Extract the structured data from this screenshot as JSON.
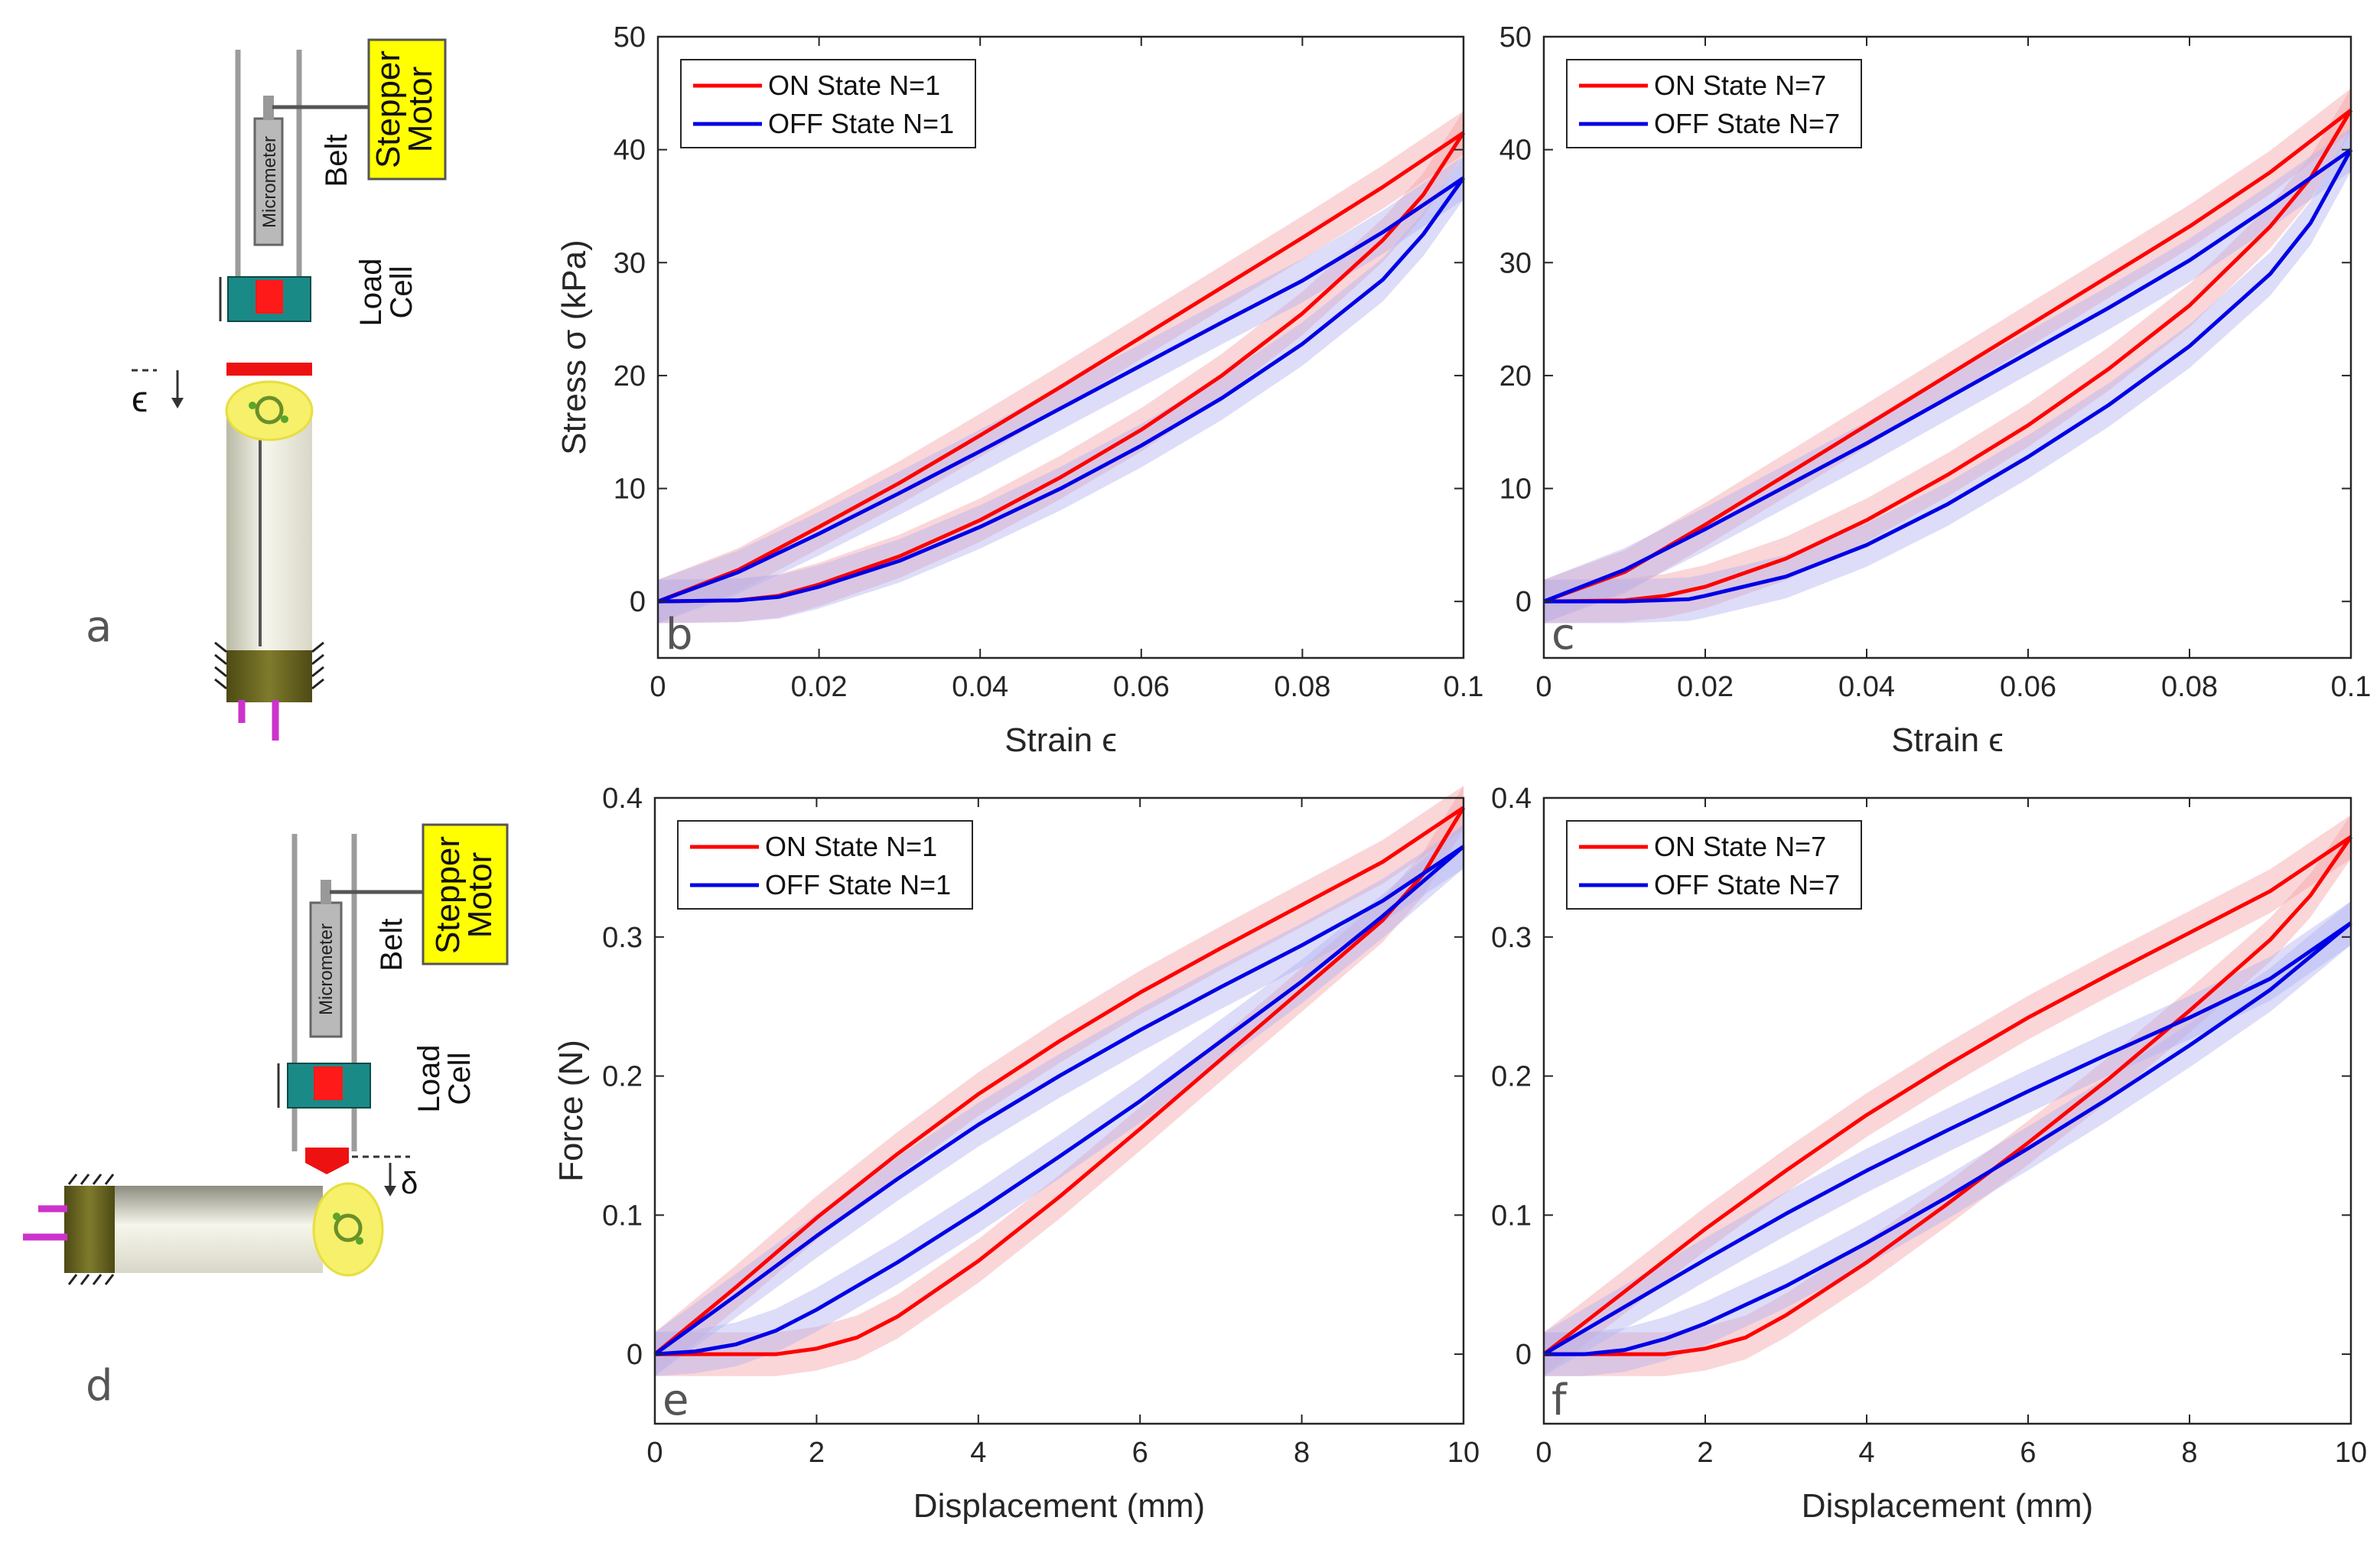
{
  "schematics": [
    {
      "letter": "a",
      "motor_line1": "Stepper",
      "motor_line2": "Motor",
      "belt": "Belt",
      "micrometer": "Micrometer",
      "load_line1": "Load",
      "load_line2": "Cell",
      "symbol": "ϵ"
    },
    {
      "letter": "d",
      "motor_line1": "Stepper",
      "motor_line2": "Motor",
      "belt": "Belt",
      "micrometer": "Micrometer",
      "load_line1": "Load",
      "load_line2": "Cell",
      "symbol": "δ"
    }
  ],
  "colors": {
    "on": "#ff0000",
    "off": "#0000e6",
    "on_band": "#f4a3a8",
    "off_band": "#b3b3f2",
    "motor_box": "#ffff00",
    "load_cell": "#1a8a87",
    "pink": "#cc33cc"
  },
  "chart_data": [
    {
      "panel": "b",
      "type": "line",
      "xlabel": "Strain ϵ",
      "ylabel": "Stress σ (kPa)",
      "xlim": [
        0,
        0.1
      ],
      "ylim": [
        -5,
        50
      ],
      "xticks": [
        "0",
        "0.02",
        "0.04",
        "0.06",
        "0.08",
        "0.1"
      ],
      "xtick_values": [
        0,
        0.02,
        0.04,
        0.06,
        0.08,
        0.1
      ],
      "yticks": [
        "0",
        "10",
        "20",
        "30",
        "40",
        "50"
      ],
      "ytick_values": [
        0,
        10,
        20,
        30,
        40,
        50
      ],
      "legend_position": "top-left",
      "series": [
        {
          "name": "ON State N=1",
          "color": "#ff0000",
          "loading": {
            "x": [
              0,
              0.01,
              0.02,
              0.03,
              0.04,
              0.05,
              0.06,
              0.07,
              0.08,
              0.09,
              0.1
            ],
            "y": [
              0,
              2.8,
              6.6,
              10.5,
              14.7,
              19.0,
              23.4,
              27.8,
              32.2,
              36.7,
              41.5
            ]
          },
          "unloading": {
            "x": [
              0.1,
              0.095,
              0.09,
              0.08,
              0.07,
              0.06,
              0.05,
              0.04,
              0.03,
              0.02,
              0.015,
              0.01,
              0
            ],
            "y": [
              41.5,
              36.0,
              32.0,
              25.5,
              20.0,
              15.2,
              11.0,
              7.2,
              4.0,
              1.5,
              0.5,
              0.1,
              0
            ]
          }
        },
        {
          "name": "OFF State N=1",
          "color": "#0000e6",
          "loading": {
            "x": [
              0,
              0.01,
              0.02,
              0.03,
              0.04,
              0.05,
              0.06,
              0.07,
              0.08,
              0.09,
              0.1
            ],
            "y": [
              0,
              2.6,
              6.0,
              9.6,
              13.3,
              17.1,
              20.9,
              24.7,
              28.4,
              32.7,
              37.5
            ]
          },
          "unloading": {
            "x": [
              0.1,
              0.095,
              0.09,
              0.08,
              0.07,
              0.06,
              0.05,
              0.04,
              0.03,
              0.02,
              0.015,
              0.01,
              0
            ],
            "y": [
              37.5,
              32.5,
              28.5,
              22.8,
              18.0,
              13.8,
              10.0,
              6.6,
              3.6,
              1.3,
              0.4,
              0.1,
              0
            ]
          }
        }
      ]
    },
    {
      "panel": "c",
      "type": "line",
      "xlabel": "Strain ϵ",
      "ylabel": "",
      "xlim": [
        0,
        0.1
      ],
      "ylim": [
        -5,
        50
      ],
      "xticks": [
        "0",
        "0.02",
        "0.04",
        "0.06",
        "0.08",
        "0.1"
      ],
      "xtick_values": [
        0,
        0.02,
        0.04,
        0.06,
        0.08,
        0.1
      ],
      "yticks": [
        "0",
        "10",
        "20",
        "30",
        "40",
        "50"
      ],
      "ytick_values": [
        0,
        10,
        20,
        30,
        40,
        50
      ],
      "legend_position": "top-left",
      "series": [
        {
          "name": "ON State N=7",
          "color": "#ff0000",
          "loading": {
            "x": [
              0,
              0.01,
              0.02,
              0.03,
              0.04,
              0.05,
              0.06,
              0.07,
              0.08,
              0.09,
              0.1
            ],
            "y": [
              0,
              2.6,
              6.8,
              11.2,
              15.6,
              20.0,
              24.4,
              28.8,
              33.2,
              38.0,
              43.5
            ]
          },
          "unloading": {
            "x": [
              0.1,
              0.095,
              0.09,
              0.08,
              0.07,
              0.06,
              0.05,
              0.04,
              0.03,
              0.02,
              0.015,
              0.01,
              0
            ],
            "y": [
              43.5,
              37.5,
              33.2,
              26.2,
              20.6,
              15.6,
              11.2,
              7.2,
              3.8,
              1.3,
              0.5,
              0.1,
              0
            ]
          }
        },
        {
          "name": "OFF State N=7",
          "color": "#0000e6",
          "loading": {
            "x": [
              0,
              0.01,
              0.02,
              0.03,
              0.04,
              0.05,
              0.06,
              0.07,
              0.08,
              0.09,
              0.1
            ],
            "y": [
              0,
              2.8,
              6.4,
              10.2,
              14.0,
              18.0,
              22.0,
              26.0,
              30.2,
              35.0,
              40.0
            ]
          },
          "unloading": {
            "x": [
              0.1,
              0.095,
              0.09,
              0.08,
              0.07,
              0.06,
              0.05,
              0.04,
              0.03,
              0.02,
              0.018,
              0.01,
              0
            ],
            "y": [
              40.0,
              33.5,
              29.0,
              22.6,
              17.4,
              12.8,
              8.6,
              5.0,
              2.2,
              0.5,
              0.2,
              0.0,
              0
            ]
          }
        }
      ]
    },
    {
      "panel": "e",
      "type": "line",
      "xlabel": "Displacement (mm)",
      "ylabel": "Force (N)",
      "xlim": [
        0,
        10
      ],
      "ylim": [
        -0.05,
        0.4
      ],
      "xticks": [
        "0",
        "2",
        "4",
        "6",
        "8",
        "10"
      ],
      "xtick_values": [
        0,
        2,
        4,
        6,
        8,
        10
      ],
      "yticks": [
        "0",
        "0.1",
        "0.2",
        "0.3",
        "0.4"
      ],
      "ytick_values": [
        0,
        0.1,
        0.2,
        0.3,
        0.4
      ],
      "legend_position": "top-left",
      "series": [
        {
          "name": "ON State N=1",
          "color": "#ff0000",
          "loading": {
            "x": [
              0,
              1,
              2,
              3,
              4,
              5,
              6,
              7,
              8,
              9,
              10
            ],
            "y": [
              0,
              0.048,
              0.098,
              0.144,
              0.187,
              0.225,
              0.26,
              0.292,
              0.323,
              0.354,
              0.393
            ]
          },
          "unloading": {
            "x": [
              10,
              9.5,
              9,
              8,
              7,
              6,
              5,
              4,
              3,
              2.5,
              2,
              1.5,
              1,
              0
            ],
            "y": [
              0.393,
              0.345,
              0.312,
              0.262,
              0.212,
              0.162,
              0.113,
              0.067,
              0.027,
              0.012,
              0.004,
              0.0,
              0.0,
              0
            ]
          }
        },
        {
          "name": "OFF State N=1",
          "color": "#0000e6",
          "loading": {
            "x": [
              0,
              1,
              2,
              3,
              4,
              5,
              6,
              7,
              8,
              9,
              10
            ],
            "y": [
              0,
              0.042,
              0.085,
              0.126,
              0.165,
              0.2,
              0.233,
              0.264,
              0.294,
              0.326,
              0.365
            ]
          },
          "unloading": {
            "x": [
              10,
              9,
              8,
              7,
              6,
              5,
              4,
              3,
              2,
              1.5,
              1,
              0.5,
              0
            ],
            "y": [
              0.365,
              0.315,
              0.268,
              0.225,
              0.182,
              0.142,
              0.103,
              0.066,
              0.032,
              0.017,
              0.007,
              0.002,
              0
            ]
          }
        }
      ]
    },
    {
      "panel": "f",
      "type": "line",
      "xlabel": "Displacement (mm)",
      "ylabel": "",
      "xlim": [
        0,
        10
      ],
      "ylim": [
        -0.05,
        0.4
      ],
      "xticks": [
        "0",
        "2",
        "4",
        "6",
        "8",
        "10"
      ],
      "xtick_values": [
        0,
        2,
        4,
        6,
        8,
        10
      ],
      "yticks": [
        "0",
        "0.1",
        "0.2",
        "0.3",
        "0.4"
      ],
      "ytick_values": [
        0,
        0.1,
        0.2,
        0.3,
        0.4
      ],
      "legend_position": "top-left",
      "series": [
        {
          "name": "ON State N=7",
          "color": "#ff0000",
          "loading": {
            "x": [
              0,
              1,
              2,
              3,
              4,
              5,
              6,
              7,
              8,
              9,
              10
            ],
            "y": [
              0,
              0.045,
              0.09,
              0.132,
              0.172,
              0.208,
              0.242,
              0.273,
              0.303,
              0.333,
              0.372
            ]
          },
          "unloading": {
            "x": [
              10,
              9.5,
              9,
              8,
              7,
              6,
              5,
              4,
              3,
              2.5,
              2,
              1.5,
              1,
              0
            ],
            "y": [
              0.372,
              0.33,
              0.298,
              0.247,
              0.198,
              0.152,
              0.108,
              0.066,
              0.028,
              0.012,
              0.004,
              0.0,
              0.0,
              0
            ]
          }
        },
        {
          "name": "OFF State N=7",
          "color": "#0000e6",
          "loading": {
            "x": [
              0,
              1,
              2,
              3,
              4,
              5,
              6,
              7,
              8,
              9,
              10
            ],
            "y": [
              0,
              0.034,
              0.068,
              0.101,
              0.132,
              0.161,
              0.189,
              0.216,
              0.242,
              0.27,
              0.31
            ]
          },
          "unloading": {
            "x": [
              10,
              9,
              8,
              7,
              6,
              5,
              4,
              3,
              2,
              1.5,
              1,
              0.5,
              0
            ],
            "y": [
              0.31,
              0.262,
              0.222,
              0.184,
              0.148,
              0.113,
              0.08,
              0.049,
              0.022,
              0.011,
              0.003,
              0.0,
              0
            ]
          }
        }
      ]
    }
  ]
}
